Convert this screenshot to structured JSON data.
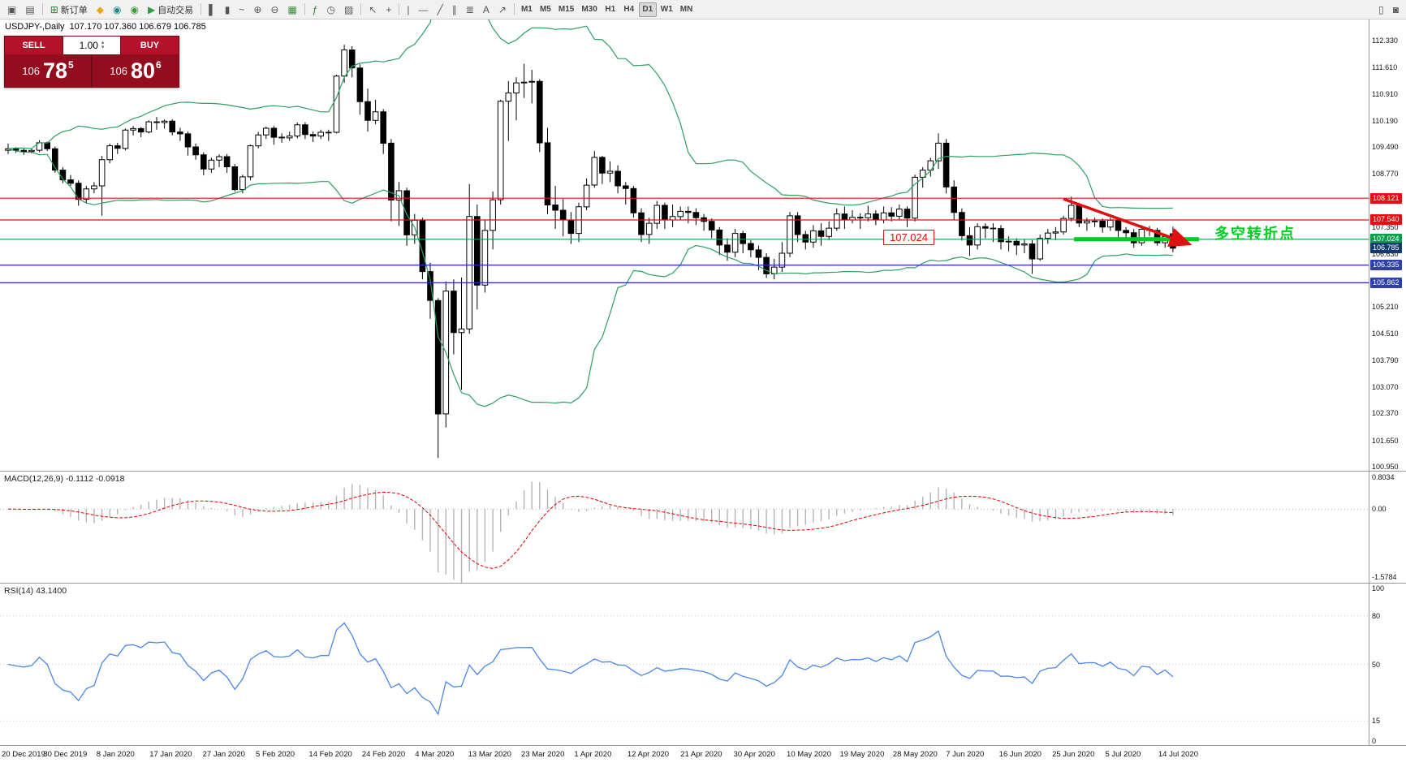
{
  "toolbar": {
    "groups": [
      {
        "items": [
          {
            "name": "chart-window-button",
            "glyph": "▣"
          },
          {
            "name": "profiles-button",
            "glyph": "▤"
          }
        ]
      },
      {
        "items": [
          {
            "name": "new-order-button",
            "glyph": "⊞",
            "glyph_color": "#2e7d32",
            "label": "新订单"
          },
          {
            "name": "metaeditor-button",
            "glyph": "◆",
            "glyph_color": "#e6a817"
          },
          {
            "name": "market-watch-button",
            "glyph": "◉",
            "glyph_color": "#1f8a8a"
          },
          {
            "name": "strategy-tester-button",
            "glyph": "◉",
            "glyph_color": "#3a9e3a"
          },
          {
            "name": "autotrading-button",
            "glyph": "▶",
            "glyph_color": "#2e9e3f",
            "label": "自动交易"
          }
        ]
      },
      {
        "items": [
          {
            "name": "bar-chart-button",
            "glyph": "▌"
          },
          {
            "name": "candlestick-chart-button",
            "glyph": "▮"
          },
          {
            "name": "line-chart-button",
            "glyph": "~"
          },
          {
            "name": "zoom-in-button",
            "glyph": "⊕"
          },
          {
            "name": "zoom-out-button",
            "glyph": "⊖"
          },
          {
            "name": "tile-windows-button",
            "glyph": "▦",
            "glyph_color": "#3a8f3a"
          }
        ]
      },
      {
        "items": [
          {
            "name": "indicators-button",
            "glyph": "ƒ",
            "glyph_color": "#2e7d32"
          },
          {
            "name": "periods-button",
            "glyph": "◷"
          },
          {
            "name": "templates-button",
            "glyph": "▨"
          }
        ]
      },
      {
        "items": [
          {
            "name": "cursor-button",
            "glyph": "↖"
          },
          {
            "name": "crosshair-button",
            "glyph": "+"
          }
        ]
      },
      {
        "items": [
          {
            "name": "vertical-line-button",
            "glyph": "|"
          },
          {
            "name": "horizontal-line-button",
            "glyph": "—"
          },
          {
            "name": "trendline-button",
            "glyph": "╱"
          },
          {
            "name": "channel-button",
            "glyph": "∥"
          },
          {
            "name": "fibonacci-button",
            "glyph": "≣"
          },
          {
            "name": "text-button",
            "glyph": "A"
          },
          {
            "name": "arrows-button",
            "glyph": "↗"
          }
        ]
      }
    ],
    "timeframes": [
      "M1",
      "M5",
      "M15",
      "M30",
      "H1",
      "H4",
      "D1",
      "W1",
      "MN"
    ],
    "active_timeframe": "D1",
    "right": [
      {
        "name": "docs-button",
        "glyph": "▯"
      },
      {
        "name": "chat-button",
        "glyph": "◙"
      }
    ]
  },
  "chart": {
    "symbol_title": "USDJPY-,Daily",
    "ohlc_text": "107.170 107.360 106.679 106.785",
    "price_axis": [
      "112.330",
      "111.610",
      "110.910",
      "110.190",
      "109.490",
      "108.770",
      "108.050",
      "107.350",
      "106.630",
      "105.910",
      "105.210",
      "104.510",
      "103.790",
      "103.070",
      "102.370",
      "101.650",
      "100.950"
    ],
    "price_tags": [
      {
        "value": 108.121,
        "label": "108.121",
        "bg": "#e01010"
      },
      {
        "value": 107.54,
        "label": "107.540",
        "bg": "#e01010"
      },
      {
        "value": 107.024,
        "label": "107.024",
        "bg": "#089e4c"
      },
      {
        "value": 106.785,
        "label": "106.785",
        "bg": "#123a6e"
      },
      {
        "value": 106.335,
        "label": "106.335",
        "bg": "#2f3fb0"
      },
      {
        "value": 105.862,
        "label": "105.862",
        "bg": "#2f3fb0"
      }
    ],
    "levels": [
      {
        "value": 108.121,
        "color": "#e01010"
      },
      {
        "value": 107.54,
        "color": "#e01010"
      },
      {
        "value": 107.024,
        "color": "#089e4c"
      },
      {
        "value": 106.335,
        "color": "#2828c8"
      },
      {
        "value": 105.862,
        "color": "#2828c8"
      }
    ],
    "bollinger": {
      "period": 20,
      "deviation": 2,
      "color": "#2e9e62"
    },
    "candles": [
      [
        109.4,
        109.58,
        109.3,
        109.44
      ],
      [
        109.44,
        109.48,
        109.33,
        109.4
      ],
      [
        109.4,
        109.45,
        109.28,
        109.37
      ],
      [
        109.37,
        109.44,
        109.32,
        109.4
      ],
      [
        109.4,
        109.67,
        109.35,
        109.6
      ],
      [
        109.6,
        109.63,
        109.38,
        109.44
      ],
      [
        109.44,
        109.5,
        108.8,
        108.87
      ],
      [
        108.87,
        108.95,
        108.52,
        108.61
      ],
      [
        108.61,
        108.74,
        108.45,
        108.52
      ],
      [
        108.52,
        108.6,
        107.92,
        108.09
      ],
      [
        108.09,
        108.45,
        107.98,
        108.37
      ],
      [
        108.37,
        108.55,
        108.25,
        108.45
      ],
      [
        108.45,
        109.25,
        107.65,
        109.15
      ],
      [
        109.15,
        109.58,
        109.05,
        109.52
      ],
      [
        109.52,
        109.6,
        109.3,
        109.45
      ],
      [
        109.45,
        109.98,
        109.4,
        109.94
      ],
      [
        109.94,
        110.05,
        109.8,
        109.98
      ],
      [
        109.98,
        110.02,
        109.75,
        109.89
      ],
      [
        109.89,
        110.2,
        109.85,
        110.16
      ],
      [
        110.16,
        110.29,
        109.95,
        110.14
      ],
      [
        110.14,
        110.22,
        109.98,
        110.18
      ],
      [
        110.18,
        110.23,
        109.8,
        109.89
      ],
      [
        109.89,
        110.0,
        109.65,
        109.84
      ],
      [
        109.84,
        109.9,
        109.26,
        109.49
      ],
      [
        109.49,
        109.58,
        109.15,
        109.28
      ],
      [
        109.28,
        109.35,
        108.73,
        108.9
      ],
      [
        108.9,
        109.2,
        108.8,
        109.14
      ],
      [
        109.14,
        109.29,
        108.95,
        109.23
      ],
      [
        109.23,
        109.3,
        108.8,
        108.96
      ],
      [
        108.96,
        109.03,
        108.3,
        108.35
      ],
      [
        108.35,
        108.75,
        108.25,
        108.69
      ],
      [
        108.69,
        109.55,
        108.6,
        109.52
      ],
      [
        109.52,
        109.89,
        109.45,
        109.81
      ],
      [
        109.81,
        110.03,
        109.7,
        109.99
      ],
      [
        109.99,
        110.05,
        109.55,
        109.75
      ],
      [
        109.75,
        109.85,
        109.6,
        109.73
      ],
      [
        109.73,
        109.9,
        109.65,
        109.78
      ],
      [
        109.78,
        110.14,
        109.72,
        110.08
      ],
      [
        110.08,
        110.15,
        109.7,
        109.82
      ],
      [
        109.82,
        109.9,
        109.62,
        109.78
      ],
      [
        109.78,
        109.95,
        109.7,
        109.88
      ],
      [
        109.88,
        109.95,
        109.65,
        109.88
      ],
      [
        109.88,
        111.42,
        109.85,
        111.38
      ],
      [
        111.38,
        112.22,
        111.2,
        112.08
      ],
      [
        112.08,
        112.18,
        111.35,
        111.6
      ],
      [
        111.6,
        111.7,
        110.35,
        110.7
      ],
      [
        110.7,
        111.05,
        109.9,
        110.2
      ],
      [
        110.2,
        110.75,
        110.1,
        110.43
      ],
      [
        110.43,
        110.5,
        109.3,
        109.59
      ],
      [
        109.59,
        109.7,
        107.5,
        108.07
      ],
      [
        108.07,
        108.55,
        107.38,
        108.32
      ],
      [
        108.32,
        108.4,
        106.85,
        107.14
      ],
      [
        107.14,
        107.7,
        106.9,
        107.53
      ],
      [
        107.53,
        107.6,
        105.95,
        106.16
      ],
      [
        106.16,
        106.4,
        104.9,
        105.39
      ],
      [
        105.39,
        105.45,
        101.18,
        102.36
      ],
      [
        102.36,
        105.9,
        102.0,
        105.64
      ],
      [
        105.64,
        105.95,
        103.95,
        104.53
      ],
      [
        104.53,
        106.0,
        103.0,
        104.63
      ],
      [
        104.63,
        108.5,
        104.5,
        107.63
      ],
      [
        107.63,
        107.95,
        105.15,
        105.8
      ],
      [
        105.8,
        107.55,
        105.6,
        107.26
      ],
      [
        107.26,
        108.3,
        106.75,
        108.08
      ],
      [
        108.08,
        110.75,
        107.95,
        110.71
      ],
      [
        110.71,
        111.25,
        109.65,
        110.93
      ],
      [
        110.93,
        111.35,
        110.2,
        111.2
      ],
      [
        111.2,
        111.71,
        110.8,
        111.22
      ],
      [
        111.22,
        111.55,
        110.65,
        111.24
      ],
      [
        111.24,
        111.3,
        109.35,
        109.6
      ],
      [
        109.6,
        110.0,
        107.7,
        107.94
      ],
      [
        107.94,
        108.45,
        107.3,
        107.8
      ],
      [
        107.8,
        108.1,
        107.1,
        107.54
      ],
      [
        107.54,
        107.75,
        106.9,
        107.18
      ],
      [
        107.18,
        108.0,
        106.95,
        107.89
      ],
      [
        107.89,
        108.65,
        107.8,
        108.47
      ],
      [
        108.47,
        109.38,
        108.4,
        109.21
      ],
      [
        109.21,
        109.25,
        108.5,
        108.79
      ],
      [
        108.79,
        109.1,
        108.55,
        108.84
      ],
      [
        108.84,
        109.0,
        108.25,
        108.45
      ],
      [
        108.45,
        108.55,
        107.95,
        108.38
      ],
      [
        108.38,
        108.45,
        107.6,
        107.73
      ],
      [
        107.73,
        107.85,
        106.95,
        107.15
      ],
      [
        107.15,
        107.6,
        106.9,
        107.45
      ],
      [
        107.45,
        108.05,
        107.3,
        107.93
      ],
      [
        107.93,
        108.0,
        107.3,
        107.54
      ],
      [
        107.54,
        107.95,
        107.35,
        107.63
      ],
      [
        107.63,
        107.9,
        107.55,
        107.77
      ],
      [
        107.77,
        107.9,
        107.45,
        107.74
      ],
      [
        107.74,
        107.85,
        107.4,
        107.6
      ],
      [
        107.6,
        107.7,
        107.25,
        107.5
      ],
      [
        107.5,
        107.58,
        107.05,
        107.27
      ],
      [
        107.27,
        107.35,
        106.6,
        106.87
      ],
      [
        106.87,
        107.05,
        106.45,
        106.68
      ],
      [
        106.68,
        107.3,
        106.55,
        107.18
      ],
      [
        107.18,
        107.25,
        106.65,
        106.91
      ],
      [
        106.91,
        107.0,
        106.55,
        106.74
      ],
      [
        106.74,
        106.85,
        106.2,
        106.54
      ],
      [
        106.54,
        106.65,
        105.99,
        106.1
      ],
      [
        106.1,
        106.5,
        105.95,
        106.28
      ],
      [
        106.28,
        106.95,
        106.15,
        106.65
      ],
      [
        106.65,
        107.75,
        106.55,
        107.65
      ],
      [
        107.65,
        107.75,
        106.95,
        107.15
      ],
      [
        107.15,
        107.25,
        106.75,
        106.95
      ],
      [
        106.95,
        107.4,
        106.8,
        107.25
      ],
      [
        107.25,
        107.45,
        106.85,
        107.1
      ],
      [
        107.1,
        107.5,
        107.0,
        107.32
      ],
      [
        107.32,
        107.85,
        107.25,
        107.7
      ],
      [
        107.7,
        107.9,
        107.3,
        107.54
      ],
      [
        107.54,
        107.8,
        107.45,
        107.61
      ],
      [
        107.61,
        107.72,
        107.3,
        107.6
      ],
      [
        107.6,
        107.92,
        107.5,
        107.7
      ],
      [
        107.7,
        107.8,
        107.4,
        107.54
      ],
      [
        107.54,
        107.9,
        107.45,
        107.73
      ],
      [
        107.73,
        107.88,
        107.5,
        107.64
      ],
      [
        107.64,
        107.95,
        107.55,
        107.83
      ],
      [
        107.83,
        107.9,
        107.35,
        107.59
      ],
      [
        107.59,
        108.75,
        107.5,
        108.68
      ],
      [
        108.68,
        108.95,
        108.4,
        108.87
      ],
      [
        108.87,
        109.2,
        108.7,
        109.12
      ],
      [
        109.12,
        109.85,
        108.9,
        109.59
      ],
      [
        109.59,
        109.7,
        108.25,
        108.42
      ],
      [
        108.42,
        108.6,
        107.55,
        107.74
      ],
      [
        107.74,
        107.85,
        106.99,
        107.12
      ],
      [
        107.12,
        107.35,
        106.58,
        106.87
      ],
      [
        106.87,
        107.45,
        106.75,
        107.36
      ],
      [
        107.36,
        107.45,
        107.05,
        107.32
      ],
      [
        107.32,
        107.45,
        106.95,
        107.31
      ],
      [
        107.31,
        107.4,
        106.75,
        106.96
      ],
      [
        106.96,
        107.1,
        106.7,
        106.97
      ],
      [
        106.97,
        107.05,
        106.6,
        106.87
      ],
      [
        106.87,
        107.02,
        106.65,
        106.9
      ],
      [
        106.9,
        107.0,
        106.1,
        106.5
      ],
      [
        106.5,
        107.15,
        106.45,
        107.05
      ],
      [
        107.05,
        107.3,
        106.9,
        107.19
      ],
      [
        107.19,
        107.35,
        107.0,
        107.22
      ],
      [
        107.22,
        107.65,
        107.15,
        107.58
      ],
      [
        107.58,
        108.16,
        107.5,
        107.93
      ],
      [
        107.93,
        108.0,
        107.35,
        107.46
      ],
      [
        107.46,
        107.6,
        107.25,
        107.51
      ],
      [
        107.51,
        107.6,
        107.35,
        107.51
      ],
      [
        107.51,
        107.58,
        107.2,
        107.35
      ],
      [
        107.35,
        107.6,
        107.25,
        107.53
      ],
      [
        107.53,
        107.6,
        107.05,
        107.26
      ],
      [
        107.26,
        107.35,
        107.05,
        107.2
      ],
      [
        107.2,
        107.3,
        106.8,
        106.93
      ],
      [
        106.93,
        107.4,
        106.85,
        107.29
      ],
      [
        107.29,
        107.38,
        107.1,
        107.26
      ],
      [
        107.26,
        107.33,
        106.85,
        106.93
      ],
      [
        106.93,
        107.17,
        106.8,
        107.1
      ],
      [
        107.17,
        107.36,
        106.679,
        106.785
      ]
    ]
  },
  "trade_panel": {
    "sell_label": "SELL",
    "buy_label": "BUY",
    "volume": "1.00",
    "spin_up": "▴",
    "spin_down": "▾",
    "bid_base": "106",
    "bid_big": "78",
    "bid_sup": "5",
    "ask_base": "106",
    "ask_big": "80",
    "ask_sup": "6"
  },
  "annotations": {
    "price_flag": "107.024",
    "turning_point": "多空转折点",
    "turning_point_color": "#00cc22",
    "arrow_color": "#e01010"
  },
  "macd": {
    "label": "MACD(12,26,9) -0.1112 -0.0918",
    "axis": [
      "0.8034",
      "0.00",
      "-1.5784"
    ],
    "fast": 12,
    "slow": 26,
    "signal": 9,
    "bar_color": "#b4b4b4",
    "signal_color": "#dd0000"
  },
  "rsi": {
    "label": "RSI(14) 43.1400",
    "axis": [
      "100",
      "80",
      "50",
      "15",
      "0"
    ],
    "period": 14,
    "line_color": "#4a86e8"
  },
  "dates": [
    "20 Dec 2019",
    "30 Dec 2019",
    "8 Jan 2020",
    "17 Jan 2020",
    "27 Jan 2020",
    "5 Feb 2020",
    "14 Feb 2020",
    "24 Feb 2020",
    "4 Mar 2020",
    "13 Mar 2020",
    "23 Mar 2020",
    "1 Apr 2020",
    "12 Apr 2020",
    "21 Apr 2020",
    "30 Apr 2020",
    "10 May 2020",
    "19 May 2020",
    "28 May 2020",
    "7 Jun 2020",
    "16 Jun 2020",
    "25 Jun 2020",
    "5 Jul 2020",
    "14 Jul 2020"
  ]
}
